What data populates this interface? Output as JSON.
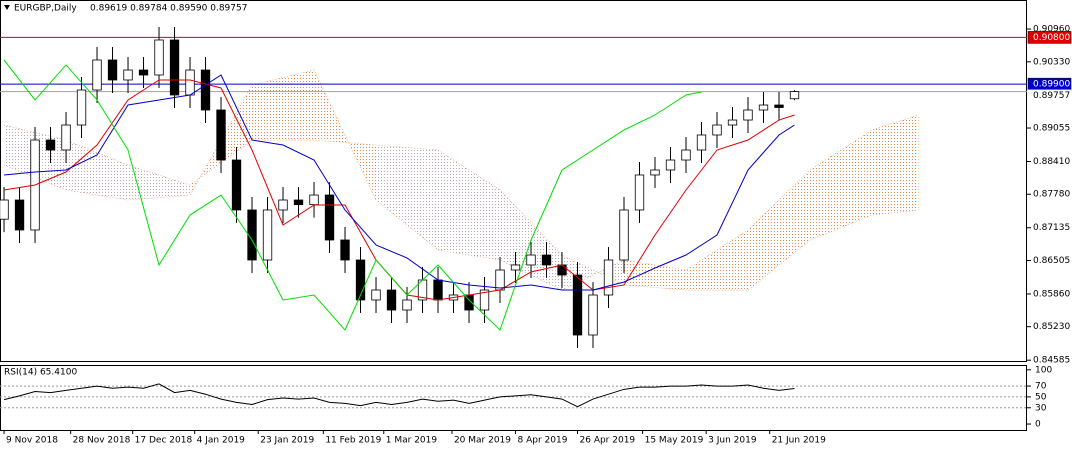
{
  "chart_data": [
    {
      "type": "candlestick",
      "title": "EURGBP,Daily",
      "subtitle": "0.89619 0.89784 0.89590 0.89757",
      "open": [
        0.873,
        0.87669,
        0.87092,
        0.88824,
        0.88632,
        0.89113,
        0.89787,
        0.90365,
        0.8998,
        0.90172,
        0.90076,
        0.9075,
        0.89691,
        0.90172,
        0.89402,
        0.88439,
        0.87477,
        0.86514,
        0.87477,
        0.87669,
        0.8758,
        0.87765,
        0.86899,
        0.86514,
        0.85744,
        0.85936,
        0.85551,
        0.85744,
        0.86129,
        0.85744,
        0.8584,
        0.85551,
        0.85936,
        0.86321,
        0.86418,
        0.8661,
        0.86418,
        0.86225,
        0.8507,
        0.8584,
        0.86514,
        0.87477,
        0.88151,
        0.88247,
        0.88439,
        0.88632,
        0.88921,
        0.89113,
        0.89209,
        0.89402,
        0.89498,
        0.89619
      ],
      "high": [
        0.87919,
        0.87919,
        0.89074,
        0.89074,
        0.89363,
        0.90037,
        0.90615,
        0.90615,
        0.90422,
        0.90422,
        0.91,
        0.91,
        0.90422,
        0.90422,
        0.89652,
        0.88689,
        0.87727,
        0.87727,
        0.87919,
        0.87919,
        0.88015,
        0.88015,
        0.87149,
        0.86764,
        0.86186,
        0.86186,
        0.85994,
        0.86379,
        0.86379,
        0.8609,
        0.8609,
        0.86186,
        0.86571,
        0.86668,
        0.8686,
        0.8686,
        0.86668,
        0.86475,
        0.8609,
        0.86764,
        0.87727,
        0.88401,
        0.88497,
        0.88689,
        0.88882,
        0.89171,
        0.89363,
        0.89459,
        0.89652,
        0.89748,
        0.89748,
        0.89784
      ],
      "low": [
        0.8705,
        0.86842,
        0.86842,
        0.88382,
        0.88382,
        0.88863,
        0.89537,
        0.8973,
        0.8973,
        0.89826,
        0.89826,
        0.89441,
        0.89441,
        0.89152,
        0.88189,
        0.87227,
        0.86264,
        0.86264,
        0.87227,
        0.8733,
        0.8733,
        0.86649,
        0.86264,
        0.85494,
        0.85494,
        0.85301,
        0.85301,
        0.85494,
        0.85494,
        0.85494,
        0.85301,
        0.85301,
        0.85686,
        0.86071,
        0.86168,
        0.86168,
        0.85975,
        0.8482,
        0.8482,
        0.8559,
        0.86264,
        0.87227,
        0.87901,
        0.87997,
        0.88189,
        0.88382,
        0.88671,
        0.88863,
        0.88959,
        0.89152,
        0.892,
        0.8959
      ],
      "close": [
        0.87669,
        0.87092,
        0.88824,
        0.88632,
        0.89113,
        0.89787,
        0.90365,
        0.8998,
        0.90172,
        0.90076,
        0.9075,
        0.89691,
        0.90172,
        0.89402,
        0.88439,
        0.87477,
        0.86514,
        0.87477,
        0.87669,
        0.8758,
        0.87765,
        0.86899,
        0.86514,
        0.85744,
        0.85936,
        0.85551,
        0.85744,
        0.86129,
        0.85744,
        0.8584,
        0.85551,
        0.85936,
        0.86321,
        0.86418,
        0.8661,
        0.86418,
        0.86225,
        0.8507,
        0.8584,
        0.86514,
        0.87477,
        0.88151,
        0.88247,
        0.88439,
        0.88632,
        0.88921,
        0.89113,
        0.89209,
        0.89402,
        0.89498,
        0.8945,
        0.89757
      ],
      "bull_color": "#ffffff",
      "bear_color": "#000000",
      "wick_color": "#000000",
      "xlim": [
        -0.26,
        66
      ],
      "xticks": [
        {
          "value": 0,
          "label": "9 Nov 2018"
        },
        {
          "value": 4.3,
          "label": "28 Nov 2018"
        },
        {
          "value": 8.3,
          "label": "17 Dec 2018"
        },
        {
          "value": 12.3,
          "label": "4 Jan 2019"
        },
        {
          "value": 16.4,
          "label": "23 Jan 2019"
        },
        {
          "value": 20.6,
          "label": "11 Feb 2019"
        },
        {
          "value": 24.5,
          "label": "1 Mar 2019"
        },
        {
          "value": 28.9,
          "label": "20 Mar 2019"
        },
        {
          "value": 33,
          "label": "8 Apr 2019"
        },
        {
          "value": 37,
          "label": "26 Apr 2019"
        },
        {
          "value": 41.2,
          "label": "15 May 2019"
        },
        {
          "value": 45.3,
          "label": "3 Jun 2019"
        },
        {
          "value": 49.4,
          "label": "21 Jun 2019"
        }
      ],
      "ylim": [
        0.8455,
        0.9152
      ],
      "yticks": [
        {
          "value": 0.9096,
          "label": "0.90960"
        },
        {
          "value": 0.9033,
          "label": "0.90330"
        },
        {
          "value": 0.89055,
          "label": "0.89055"
        },
        {
          "value": 0.8841,
          "label": "0.88410"
        },
        {
          "value": 0.8778,
          "label": "0.87780"
        },
        {
          "value": 0.87135,
          "label": "0.87135"
        },
        {
          "value": 0.86505,
          "label": "0.86505"
        },
        {
          "value": 0.8586,
          "label": "0.85860"
        },
        {
          "value": 0.8523,
          "label": "0.85230"
        },
        {
          "value": 0.84585,
          "label": "0.84585"
        }
      ],
      "lines": [
        {
          "color": "#e00000",
          "x": [
            0,
            2,
            4,
            6,
            8,
            10,
            12,
            14,
            16,
            18,
            20,
            22,
            24,
            26,
            28,
            30,
            32,
            34,
            36,
            38,
            40,
            42,
            44,
            46,
            48,
            50,
            51
          ],
          "values": [
            0.87862,
            0.87958,
            0.88208,
            0.88728,
            0.89595,
            0.8998,
            0.8998,
            0.89826,
            0.88632,
            0.87188,
            0.87573,
            0.87573,
            0.86514,
            0.8584,
            0.85744,
            0.8584,
            0.85936,
            0.86283,
            0.86418,
            0.85936,
            0.86033,
            0.86995,
            0.87862,
            0.88632,
            0.88824,
            0.89209,
            0.89306
          ]
        },
        {
          "color": "#0000c8",
          "x": [
            0,
            2,
            4,
            6,
            8,
            10,
            12,
            14,
            16,
            18,
            20,
            22,
            24,
            26,
            28,
            30,
            32,
            34,
            36,
            38,
            40,
            42,
            44,
            46,
            48,
            50,
            51
          ],
          "values": [
            0.88151,
            0.88208,
            0.88247,
            0.88536,
            0.89498,
            0.89595,
            0.89691,
            0.90076,
            0.88824,
            0.88728,
            0.88439,
            0.87477,
            0.86803,
            0.86553,
            0.86129,
            0.86033,
            0.85975,
            0.86033,
            0.85936,
            0.85936,
            0.8609,
            0.8636,
            0.8661,
            0.86995,
            0.88247,
            0.88921,
            0.89113
          ]
        },
        {
          "color": "#00dd00",
          "x": [
            0,
            2,
            4,
            6,
            8,
            10,
            12,
            14,
            16,
            18,
            20,
            22,
            24,
            26,
            28,
            30,
            32,
            34,
            36,
            38,
            40,
            42,
            44,
            45
          ],
          "values": [
            0.90365,
            0.89595,
            0.90269,
            0.89595,
            0.88632,
            0.86418,
            0.8738,
            0.87765,
            0.86899,
            0.85744,
            0.8584,
            0.85166,
            0.86514,
            0.8584,
            0.86418,
            0.85744,
            0.85166,
            0.86899,
            0.88247,
            0.88632,
            0.89017,
            0.89306,
            0.89691,
            0.89749
          ]
        }
      ],
      "cloud": {
        "up_color": "#b8a8b8",
        "down_color": "#e08a50",
        "x": [
          0,
          4,
          8,
          12,
          16,
          20,
          24,
          28,
          32,
          36,
          40,
          44,
          48,
          52,
          56,
          59
        ],
        "span_a": [
          0.89113,
          0.88824,
          0.88343,
          0.87958,
          0.88824,
          0.88824,
          0.88728,
          0.88632,
          0.87862,
          0.8661,
          0.86033,
          0.85936,
          0.85936,
          0.86899,
          0.8738,
          0.87477
        ],
        "span_b": [
          0.88343,
          0.87862,
          0.87669,
          0.87765,
          0.89883,
          0.90172,
          0.87669,
          0.86707,
          0.86514,
          0.85936,
          0.86514,
          0.86321,
          0.87092,
          0.88247,
          0.89017,
          0.89306
        ]
      },
      "hlines": [
        {
          "value": 0.908,
          "label": "0.90800",
          "color": "#e00000"
        },
        {
          "value": 0.899,
          "label": "0.89900",
          "color": "#0000c8"
        },
        {
          "value": 0.89757,
          "label": "0.89757",
          "color": "#a0a0a0"
        }
      ]
    },
    {
      "type": "line",
      "title": "RSI(14) 65.4100",
      "color": "#000000",
      "values": [
        45,
        52,
        60,
        58,
        62,
        66,
        70,
        66,
        68,
        66,
        74,
        58,
        62,
        55,
        46,
        40,
        36,
        45,
        48,
        46,
        48,
        40,
        38,
        34,
        40,
        36,
        40,
        46,
        42,
        44,
        38,
        44,
        50,
        52,
        54,
        50,
        46,
        32,
        46,
        55,
        64,
        68,
        68,
        70,
        70,
        72,
        70,
        70,
        72,
        66,
        62,
        65.41
      ],
      "xlim": [
        -0.26,
        66
      ],
      "ylim": [
        -11,
        107
      ],
      "yticks": [
        100,
        70,
        50,
        30,
        0
      ],
      "levels": [
        70,
        50,
        30
      ]
    }
  ]
}
